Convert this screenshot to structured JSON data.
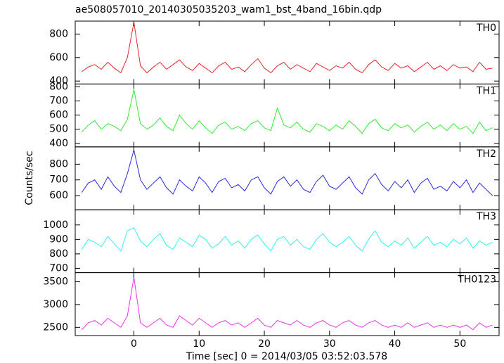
{
  "title": "ae508057010_20140305035203_wam1_bst_4band_16bin.qdp",
  "ylabel": "Counts/sec",
  "xlabel": "Time [sec] 0 = 2014/03/05 03:52:03.578",
  "chart_data": [
    {
      "type": "line",
      "label": "TH0",
      "color": "#e8262a",
      "x": [
        -8,
        -7,
        -6,
        -5,
        -4,
        -3,
        -2,
        -1,
        0,
        1,
        2,
        3,
        4,
        5,
        6,
        7,
        8,
        9,
        10,
        11,
        12,
        13,
        14,
        15,
        16,
        17,
        18,
        19,
        20,
        21,
        22,
        23,
        24,
        25,
        26,
        27,
        28,
        29,
        30,
        31,
        32,
        33,
        34,
        35,
        36,
        37,
        38,
        39,
        40,
        41,
        42,
        43,
        44,
        45,
        46,
        47,
        48,
        49,
        50,
        51,
        52,
        53,
        54,
        55
      ],
      "values": [
        480,
        520,
        540,
        500,
        560,
        510,
        470,
        600,
        900,
        530,
        470,
        520,
        560,
        500,
        540,
        580,
        520,
        490,
        550,
        510,
        470,
        530,
        560,
        500,
        520,
        480,
        540,
        590,
        510,
        470,
        530,
        560,
        500,
        540,
        510,
        480,
        550,
        520,
        490,
        530,
        510,
        560,
        500,
        470,
        540,
        580,
        520,
        490,
        550,
        510,
        530,
        480,
        520,
        560,
        500,
        530,
        490,
        540,
        510,
        520,
        480,
        560,
        500,
        510
      ],
      "xlim": [
        -9,
        56
      ],
      "xticks": [
        0,
        10,
        20,
        30,
        40,
        50
      ],
      "ylim": [
        375,
        910
      ],
      "yticks": [
        400,
        600,
        800
      ]
    },
    {
      "type": "line",
      "label": "TH1",
      "color": "#33e833",
      "x": [
        -8,
        -7,
        -6,
        -5,
        -4,
        -3,
        -2,
        -1,
        0,
        1,
        2,
        3,
        4,
        5,
        6,
        7,
        8,
        9,
        10,
        11,
        12,
        13,
        14,
        15,
        16,
        17,
        18,
        19,
        20,
        21,
        22,
        23,
        24,
        25,
        26,
        27,
        28,
        29,
        30,
        31,
        32,
        33,
        34,
        35,
        36,
        37,
        38,
        39,
        40,
        41,
        42,
        43,
        44,
        45,
        46,
        47,
        48,
        49,
        50,
        51,
        52,
        53,
        54,
        55
      ],
      "values": [
        480,
        530,
        560,
        500,
        540,
        520,
        490,
        570,
        780,
        540,
        500,
        530,
        580,
        520,
        490,
        600,
        540,
        500,
        560,
        510,
        470,
        530,
        550,
        500,
        520,
        490,
        540,
        560,
        510,
        490,
        650,
        530,
        510,
        550,
        500,
        480,
        540,
        520,
        490,
        530,
        500,
        560,
        520,
        470,
        540,
        570,
        510,
        490,
        540,
        510,
        530,
        480,
        520,
        550,
        500,
        530,
        490,
        540,
        500,
        520,
        470,
        550,
        490,
        510
      ],
      "xlim": [
        -9,
        56
      ],
      "xticks": [
        0,
        10,
        20,
        30,
        40,
        50
      ],
      "ylim": [
        375,
        820
      ],
      "yticks": [
        400,
        500,
        600,
        700,
        800
      ]
    },
    {
      "type": "line",
      "label": "TH2",
      "color": "#2a2ad8",
      "x": [
        -8,
        -7,
        -6,
        -5,
        -4,
        -3,
        -2,
        -1,
        0,
        1,
        2,
        3,
        4,
        5,
        6,
        7,
        8,
        9,
        10,
        11,
        12,
        13,
        14,
        15,
        16,
        17,
        18,
        19,
        20,
        21,
        22,
        23,
        24,
        25,
        26,
        27,
        28,
        29,
        30,
        31,
        32,
        33,
        34,
        35,
        36,
        37,
        38,
        39,
        40,
        41,
        42,
        43,
        44,
        45,
        46,
        47,
        48,
        49,
        50,
        51,
        52,
        53,
        54,
        55
      ],
      "values": [
        620,
        680,
        700,
        640,
        720,
        660,
        620,
        740,
        890,
        700,
        640,
        680,
        720,
        650,
        610,
        700,
        660,
        630,
        720,
        680,
        620,
        690,
        710,
        650,
        670,
        630,
        700,
        720,
        650,
        610,
        690,
        720,
        660,
        700,
        640,
        620,
        690,
        730,
        660,
        640,
        680,
        720,
        650,
        610,
        700,
        740,
        670,
        630,
        690,
        650,
        700,
        620,
        680,
        710,
        640,
        660,
        630,
        690,
        650,
        700,
        620,
        680,
        640,
        600
      ],
      "xlim": [
        -9,
        56
      ],
      "xticks": [
        0,
        10,
        20,
        30,
        40,
        50
      ],
      "ylim": [
        510,
        910
      ],
      "yticks": [
        600,
        700,
        800
      ]
    },
    {
      "type": "line",
      "label": "TH3",
      "color": "#33f0f0",
      "x": [
        -8,
        -7,
        -6,
        -5,
        -4,
        -3,
        -2,
        -1,
        0,
        1,
        2,
        3,
        4,
        5,
        6,
        7,
        8,
        9,
        10,
        11,
        12,
        13,
        14,
        15,
        16,
        17,
        18,
        19,
        20,
        21,
        22,
        23,
        24,
        25,
        26,
        27,
        28,
        29,
        30,
        31,
        32,
        33,
        34,
        35,
        36,
        37,
        38,
        39,
        40,
        41,
        42,
        43,
        44,
        45,
        46,
        47,
        48,
        49,
        50,
        51,
        52,
        53,
        54,
        55
      ],
      "values": [
        830,
        900,
        880,
        850,
        920,
        870,
        820,
        960,
        980,
        890,
        850,
        900,
        940,
        860,
        830,
        910,
        880,
        850,
        930,
        900,
        840,
        870,
        920,
        860,
        890,
        840,
        900,
        930,
        870,
        820,
        900,
        920,
        860,
        900,
        850,
        830,
        900,
        940,
        880,
        850,
        880,
        920,
        860,
        820,
        900,
        960,
        880,
        850,
        890,
        860,
        910,
        840,
        880,
        920,
        860,
        880,
        850,
        900,
        870,
        910,
        840,
        890,
        860,
        880
      ],
      "xlim": [
        -9,
        56
      ],
      "xticks": [
        0,
        10,
        20,
        30,
        40,
        50
      ],
      "ylim": [
        670,
        1105
      ],
      "yticks": [
        700,
        800,
        900,
        1000
      ]
    },
    {
      "type": "line",
      "label": "TH0123",
      "color": "#e833e8",
      "x": [
        -8,
        -7,
        -6,
        -5,
        -4,
        -3,
        -2,
        -1,
        0,
        1,
        2,
        3,
        4,
        5,
        6,
        7,
        8,
        9,
        10,
        11,
        12,
        13,
        14,
        15,
        16,
        17,
        18,
        19,
        20,
        21,
        22,
        23,
        24,
        25,
        26,
        27,
        28,
        29,
        30,
        31,
        32,
        33,
        34,
        35,
        36,
        37,
        38,
        39,
        40,
        41,
        42,
        43,
        44,
        45,
        46,
        47,
        48,
        49,
        50,
        51,
        52,
        53,
        54,
        55
      ],
      "values": [
        2450,
        2600,
        2650,
        2550,
        2700,
        2600,
        2500,
        2750,
        3600,
        2600,
        2500,
        2600,
        2700,
        2550,
        2500,
        2750,
        2650,
        2550,
        2700,
        2600,
        2500,
        2600,
        2650,
        2550,
        2600,
        2500,
        2600,
        2700,
        2550,
        2500,
        2650,
        2600,
        2550,
        2650,
        2550,
        2500,
        2600,
        2650,
        2550,
        2500,
        2600,
        2650,
        2550,
        2500,
        2600,
        2650,
        2550,
        2500,
        2550,
        2500,
        2600,
        2500,
        2550,
        2600,
        2500,
        2550,
        2500,
        2550,
        2500,
        2550,
        2450,
        2600,
        2500,
        2550
      ],
      "xlim": [
        -9,
        56
      ],
      "xticks": [
        0,
        10,
        20,
        30,
        40,
        50
      ],
      "ylim": [
        2320,
        3700
      ],
      "yticks": [
        2500,
        3000,
        3500
      ]
    }
  ]
}
